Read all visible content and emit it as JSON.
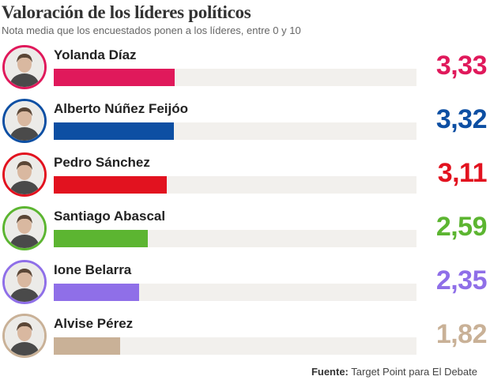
{
  "header": {
    "title": "Valoración de los líderes políticos",
    "subtitle": "Nota media que los encuestados ponen a los líderes, entre 0 y 10"
  },
  "chart_data": {
    "type": "bar",
    "orientation": "horizontal",
    "title": "Valoración de los líderes políticos",
    "subtitle": "Nota media que los encuestados ponen a los líderes, entre 0 y 10",
    "xlim": [
      0,
      10
    ],
    "categories": [
      "Yolanda Díaz",
      "Alberto Núñez Feijóo",
      "Pedro Sánchez",
      "Santiago Abascal",
      "Ione Belarra",
      "Alvise Pérez"
    ],
    "values": [
      3.33,
      3.32,
      3.11,
      2.59,
      2.35,
      1.82
    ],
    "value_labels": [
      "3,33",
      "3,32",
      "3,11",
      "2,59",
      "2,35",
      "1,82"
    ],
    "colors": [
      "#e0195b",
      "#0d4fa3",
      "#e2121f",
      "#5cb531",
      "#8f6fe8",
      "#c9b197"
    ],
    "avatar_icons": [
      "portrait-icon",
      "portrait-icon",
      "portrait-icon",
      "portrait-icon",
      "portrait-icon",
      "portrait-icon"
    ],
    "track_color": "#f2f0ed",
    "legend": "none",
    "grid": false
  },
  "footer": {
    "source_label": "Fuente:",
    "source_text": "Target Point para El Debate"
  }
}
